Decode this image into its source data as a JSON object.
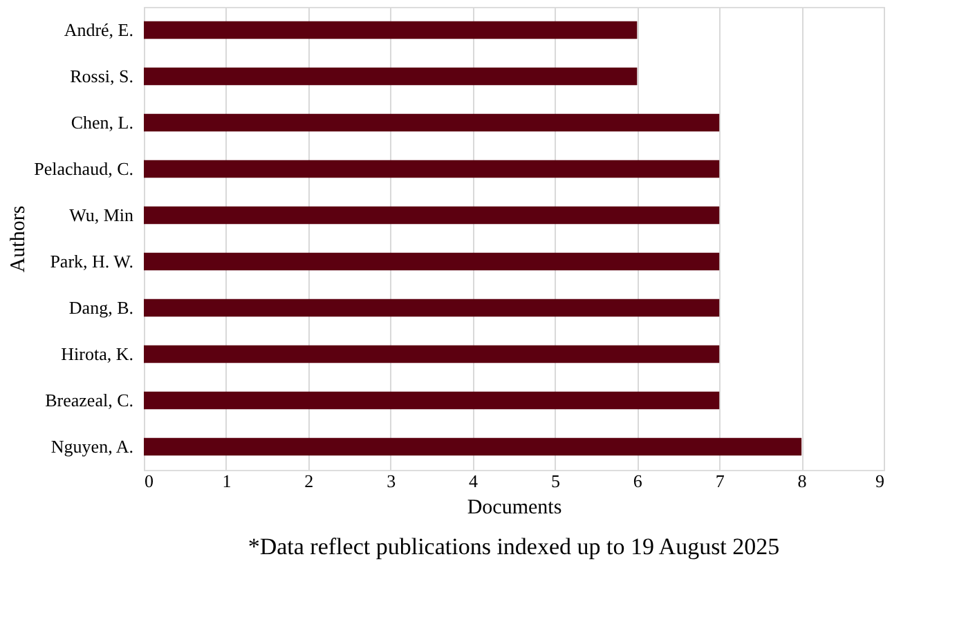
{
  "chart_data": {
    "type": "bar",
    "orientation": "horizontal",
    "xlabel": "Documents",
    "ylabel": "Authors",
    "categories": [
      "André, E.",
      "Rossi, S.",
      "Chen, L.",
      "Pelachaud, C.",
      "Wu, Min",
      "Park, H. W.",
      "Dang, B.",
      "Hirota, K.",
      "Breazeal, C.",
      "Nguyen, A."
    ],
    "values": [
      6,
      6,
      7,
      7,
      7,
      7,
      7,
      7,
      7,
      8
    ],
    "color": "#5c0010",
    "xlim": [
      0,
      9
    ],
    "xticks": [
      0,
      1,
      2,
      3,
      4,
      5,
      6,
      7,
      8,
      9
    ],
    "grid": "x",
    "annotations": [
      "*Data reflect publications indexed up to 19 August 2025"
    ]
  }
}
